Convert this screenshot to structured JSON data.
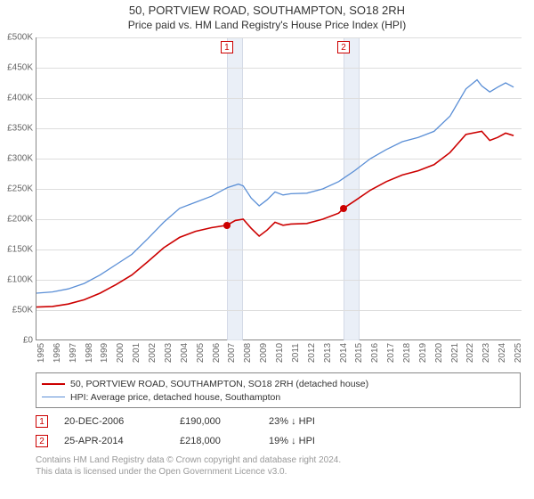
{
  "title_line1": "50, PORTVIEW ROAD, SOUTHAMPTON, SO18 2RH",
  "title_line2": "Price paid vs. HM Land Registry's House Price Index (HPI)",
  "chart": {
    "type": "line",
    "background_color": "#ffffff",
    "grid_color": "#dddddd",
    "axis_color": "#888888",
    "band_color": "#e8eef7",
    "label_fontsize": 10,
    "title_fontsize": 13,
    "x": {
      "min": 1995,
      "max": 2025.5,
      "ticks": [
        1995,
        1996,
        1997,
        1998,
        1999,
        2000,
        2001,
        2002,
        2003,
        2004,
        2005,
        2006,
        2007,
        2008,
        2009,
        2010,
        2011,
        2012,
        2013,
        2014,
        2015,
        2016,
        2017,
        2018,
        2019,
        2020,
        2021,
        2022,
        2023,
        2024,
        2025
      ]
    },
    "y": {
      "min": 0,
      "max": 500000,
      "ticks": [
        {
          "v": 0,
          "label": "£0"
        },
        {
          "v": 50000,
          "label": "£50K"
        },
        {
          "v": 100000,
          "label": "£100K"
        },
        {
          "v": 150000,
          "label": "£150K"
        },
        {
          "v": 200000,
          "label": "£200K"
        },
        {
          "v": 250000,
          "label": "£250K"
        },
        {
          "v": 300000,
          "label": "£300K"
        },
        {
          "v": 350000,
          "label": "£350K"
        },
        {
          "v": 400000,
          "label": "£400K"
        },
        {
          "v": 450000,
          "label": "£450K"
        },
        {
          "v": 500000,
          "label": "£500K"
        }
      ]
    },
    "bands": [
      {
        "from": 2006.97,
        "to": 2008.0
      },
      {
        "from": 2014.31,
        "to": 2015.3
      }
    ],
    "flags": [
      {
        "n": "1",
        "x": 2006.97
      },
      {
        "n": "2",
        "x": 2014.31
      }
    ],
    "markers": [
      {
        "x": 2006.97,
        "y": 190000
      },
      {
        "x": 2014.31,
        "y": 218000
      }
    ],
    "series": [
      {
        "name": "price_paid",
        "color": "#cc0000",
        "line_width": 1.6,
        "points": [
          [
            1995,
            55000
          ],
          [
            1996,
            56000
          ],
          [
            1997,
            60000
          ],
          [
            1998,
            67000
          ],
          [
            1999,
            78000
          ],
          [
            2000,
            92000
          ],
          [
            2001,
            108000
          ],
          [
            2002,
            130000
          ],
          [
            2003,
            153000
          ],
          [
            2004,
            170000
          ],
          [
            2005,
            180000
          ],
          [
            2006,
            186000
          ],
          [
            2006.97,
            190000
          ],
          [
            2007.5,
            198000
          ],
          [
            2008,
            200000
          ],
          [
            2008.5,
            185000
          ],
          [
            2009,
            172000
          ],
          [
            2009.5,
            182000
          ],
          [
            2010,
            195000
          ],
          [
            2010.5,
            190000
          ],
          [
            2011,
            192000
          ],
          [
            2012,
            193000
          ],
          [
            2013,
            200000
          ],
          [
            2014,
            210000
          ],
          [
            2014.31,
            218000
          ],
          [
            2015,
            230000
          ],
          [
            2016,
            248000
          ],
          [
            2017,
            262000
          ],
          [
            2018,
            273000
          ],
          [
            2019,
            280000
          ],
          [
            2020,
            290000
          ],
          [
            2021,
            310000
          ],
          [
            2022,
            340000
          ],
          [
            2023,
            345000
          ],
          [
            2023.5,
            330000
          ],
          [
            2024,
            335000
          ],
          [
            2024.5,
            342000
          ],
          [
            2025,
            338000
          ]
        ]
      },
      {
        "name": "hpi",
        "color": "#5b8fd6",
        "line_width": 1.3,
        "points": [
          [
            1995,
            78000
          ],
          [
            1996,
            80000
          ],
          [
            1997,
            85000
          ],
          [
            1998,
            94000
          ],
          [
            1999,
            108000
          ],
          [
            2000,
            125000
          ],
          [
            2001,
            142000
          ],
          [
            2002,
            168000
          ],
          [
            2003,
            195000
          ],
          [
            2004,
            218000
          ],
          [
            2005,
            228000
          ],
          [
            2006,
            238000
          ],
          [
            2007,
            252000
          ],
          [
            2007.7,
            258000
          ],
          [
            2008,
            255000
          ],
          [
            2008.5,
            235000
          ],
          [
            2009,
            222000
          ],
          [
            2009.5,
            232000
          ],
          [
            2010,
            245000
          ],
          [
            2010.5,
            240000
          ],
          [
            2011,
            242000
          ],
          [
            2012,
            243000
          ],
          [
            2013,
            250000
          ],
          [
            2014,
            262000
          ],
          [
            2015,
            280000
          ],
          [
            2016,
            300000
          ],
          [
            2017,
            315000
          ],
          [
            2018,
            328000
          ],
          [
            2019,
            335000
          ],
          [
            2020,
            345000
          ],
          [
            2021,
            370000
          ],
          [
            2022,
            415000
          ],
          [
            2022.7,
            430000
          ],
          [
            2023,
            420000
          ],
          [
            2023.5,
            410000
          ],
          [
            2024,
            418000
          ],
          [
            2024.5,
            425000
          ],
          [
            2025,
            418000
          ]
        ]
      }
    ]
  },
  "legend": {
    "items": [
      {
        "color": "#cc0000",
        "width": 2,
        "label": "50, PORTVIEW ROAD, SOUTHAMPTON, SO18 2RH (detached house)"
      },
      {
        "color": "#5b8fd6",
        "width": 1.3,
        "label": "HPI: Average price, detached house, Southampton"
      }
    ]
  },
  "sales": [
    {
      "n": "1",
      "date": "20-DEC-2006",
      "price": "£190,000",
      "diff": "23% ↓ HPI"
    },
    {
      "n": "2",
      "date": "25-APR-2014",
      "price": "£218,000",
      "diff": "19% ↓ HPI"
    }
  ],
  "footnote_line1": "Contains HM Land Registry data © Crown copyright and database right 2024.",
  "footnote_line2": "This data is licensed under the Open Government Licence v3.0."
}
